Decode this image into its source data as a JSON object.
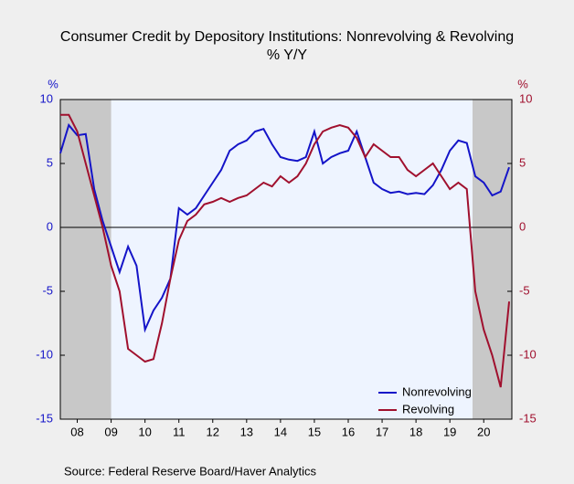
{
  "chart_data": {
    "type": "line",
    "title": "Consumer Credit by Depository Institutions: Nonrevolving & Revolving",
    "subtitle": "% Y/Y",
    "y_label": "%",
    "y2_label": "%",
    "source": "Source:  Federal Reserve Board/Haver Analytics",
    "x": [
      2008.0,
      2008.25,
      2008.5,
      2008.75,
      2009.0,
      2009.25,
      2009.5,
      2009.75,
      2010.0,
      2010.25,
      2010.5,
      2010.75,
      2011.0,
      2011.25,
      2011.5,
      2011.75,
      2012.0,
      2012.25,
      2012.5,
      2012.75,
      2013.0,
      2013.25,
      2013.5,
      2013.75,
      2014.0,
      2014.25,
      2014.5,
      2014.75,
      2015.0,
      2015.25,
      2015.5,
      2015.75,
      2016.0,
      2016.25,
      2016.5,
      2016.75,
      2017.0,
      2017.25,
      2017.5,
      2017.75,
      2018.0,
      2018.25,
      2018.5,
      2018.75,
      2019.0,
      2019.25,
      2019.5,
      2019.75,
      2020.0,
      2020.25,
      2020.5,
      2020.75,
      2021.0,
      2021.25
    ],
    "series": [
      {
        "name": "Nonrevolving",
        "color": "#1414c8",
        "axis": "y",
        "values": [
          5.8,
          8.0,
          7.2,
          7.3,
          3.0,
          0.5,
          -1.5,
          -3.5,
          -1.5,
          -3.0,
          -8.0,
          -6.5,
          -5.5,
          -4.0,
          1.5,
          1.0,
          1.5,
          2.5,
          3.5,
          4.5,
          6.0,
          6.5,
          6.8,
          7.5,
          7.7,
          6.5,
          5.5,
          5.3,
          5.2,
          5.5,
          7.5,
          5.0,
          5.5,
          5.8,
          6.0,
          7.5,
          5.5,
          3.5,
          3.0,
          2.7,
          2.8,
          2.6,
          2.7,
          2.6,
          3.3,
          4.5,
          6.0,
          6.8,
          6.6,
          4.0,
          3.5,
          2.5,
          2.8,
          4.7
        ]
      },
      {
        "name": "Revolving",
        "color": "#a0102e",
        "axis": "y2",
        "values": [
          8.8,
          8.8,
          7.5,
          5.0,
          2.5,
          0.0,
          -3.0,
          -5.0,
          -9.5,
          -10.0,
          -10.5,
          -10.3,
          -7.5,
          -4.0,
          -1.0,
          0.5,
          1.0,
          1.8,
          2.0,
          2.3,
          2.0,
          2.3,
          2.5,
          3.0,
          3.5,
          3.2,
          4.0,
          3.5,
          4.0,
          5.0,
          6.5,
          7.5,
          7.8,
          8.0,
          7.8,
          7.0,
          5.5,
          6.5,
          6.0,
          5.5,
          5.5,
          4.5,
          4.0,
          4.5,
          5.0,
          4.0,
          3.0,
          3.5,
          3.0,
          -5.0,
          -8.0,
          -10.0,
          -12.5,
          -5.8
        ]
      }
    ],
    "xlim": [
      2008.0,
      2021.33
    ],
    "xticks": [
      {
        "value": 2008.5,
        "label": "08"
      },
      {
        "value": 2009.5,
        "label": "09"
      },
      {
        "value": 2010.5,
        "label": "10"
      },
      {
        "value": 2011.5,
        "label": "11"
      },
      {
        "value": 2012.5,
        "label": "12"
      },
      {
        "value": 2013.5,
        "label": "13"
      },
      {
        "value": 2014.5,
        "label": "14"
      },
      {
        "value": 2015.5,
        "label": "15"
      },
      {
        "value": 2016.5,
        "label": "16"
      },
      {
        "value": 2017.5,
        "label": "17"
      },
      {
        "value": 2018.5,
        "label": "18"
      },
      {
        "value": 2019.5,
        "label": "19"
      },
      {
        "value": 2020.5,
        "label": "20"
      }
    ],
    "ylim": [
      -15,
      10
    ],
    "yticks": [
      -15,
      -10,
      -5,
      0,
      5,
      10
    ],
    "y2lim": [
      -15,
      10
    ],
    "y2ticks": [
      -15,
      -10,
      -5,
      0,
      5,
      10
    ],
    "recessions": [
      [
        2008.0,
        2009.5
      ],
      [
        2020.17,
        2021.33
      ]
    ],
    "legend": "lower-right"
  }
}
